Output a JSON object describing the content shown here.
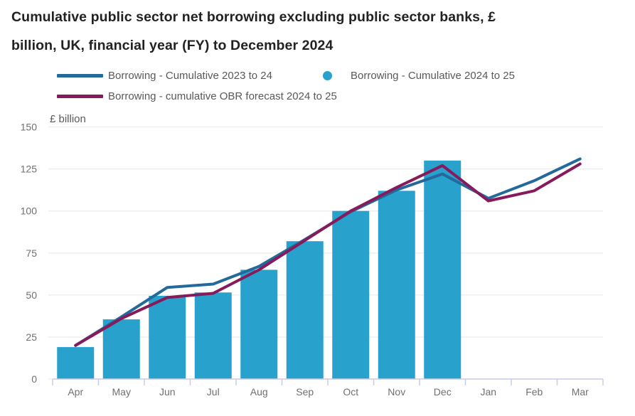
{
  "title": {
    "full": "Cumulative public sector net borrowing excluding public sector banks, £ billion, UK, financial year (FY) to December 2024",
    "line1": "Cumulative public sector net borrowing excluding public sector banks, £",
    "line2": "billion, UK, financial year (FY) to December 2024"
  },
  "chart_data": {
    "type": "bar+line",
    "title": "Cumulative public sector net borrowing excluding public sector banks, £ billion, UK, financial year (FY) to December 2024",
    "ylabel": "£ billion",
    "xlabel": "",
    "categories": [
      "Apr",
      "May",
      "Jun",
      "Jul",
      "Aug",
      "Sep",
      "Oct",
      "Nov",
      "Dec",
      "Jan",
      "Feb",
      "Mar"
    ],
    "yticks": [
      0,
      25,
      50,
      75,
      100,
      125,
      150
    ],
    "ylim": [
      0,
      150
    ],
    "grid": true,
    "legend_position": "top",
    "series": [
      {
        "name": "Borrowing - Cumulative 2023 to 24",
        "type": "line",
        "color": "#24699c",
        "values": [
          20,
          37,
          54.5,
          56.5,
          67,
          83,
          99.5,
          112.5,
          122,
          107.5,
          118,
          131
        ]
      },
      {
        "name": "Borrowing - Cumulative 2024 to 25",
        "type": "bar",
        "color": "#28a1cd",
        "values": [
          19,
          35.5,
          49.5,
          51.5,
          65,
          82,
          100,
          112,
          130,
          null,
          null,
          null
        ]
      },
      {
        "name": "Borrowing - cumulative OBR forecast 2024 to 25",
        "type": "line",
        "color": "#871a5b",
        "values": [
          20,
          36,
          48.5,
          51,
          65,
          82.5,
          100,
          114,
          127,
          106,
          112,
          128
        ]
      }
    ]
  },
  "colors": {
    "title_text": "#222222",
    "legend_text": "#595959",
    "axis_label_text": "#707071",
    "gridline": "#ededed",
    "axis_line": "#c9cde4"
  }
}
